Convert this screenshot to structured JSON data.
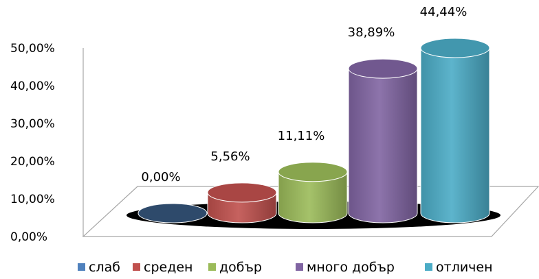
{
  "chart_data": {
    "type": "bar",
    "style": "3d-cylinder",
    "categories": [
      "слаб",
      "среден",
      "добър",
      "много добър",
      "отличен"
    ],
    "values": [
      0.0,
      5.56,
      11.11,
      38.89,
      44.44
    ],
    "data_labels": [
      "0,00%",
      "5,56%",
      "11,11%",
      "38,89%",
      "44,44%"
    ],
    "yticks": [
      "0,00%",
      "10,00%",
      "20,00%",
      "30,00%",
      "40,00%",
      "50,00%"
    ],
    "ylim": [
      0,
      50
    ],
    "grid": false,
    "legend_position": "bottom",
    "colors": [
      "#2E4A6B",
      "#C0504D",
      "#9BBB59",
      "#8064A2",
      "#4BACC6"
    ]
  }
}
